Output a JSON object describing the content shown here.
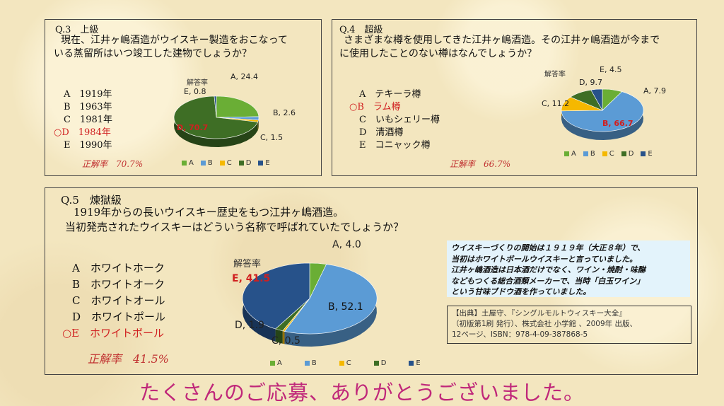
{
  "colors": {
    "A": "#6aae35",
    "B": "#5b9bd5",
    "C": "#f5b800",
    "D": "#3e6e25",
    "E": "#27528a",
    "red": "#d02020",
    "footer": "#c0287a"
  },
  "q3": {
    "title": "Q.3　上級",
    "text": [
      "現在、江井ヶ嶋酒造がウイスキー製造をおこなって",
      "いる蒸留所はいつ竣工した建物でしょうか？"
    ],
    "options": [
      "A　1919年",
      "B　1963年",
      "C　1981年",
      "○D　1984年",
      "E　1990年"
    ],
    "correct_rate": "正解率　70.7%",
    "chart_title": "解答率",
    "labels": {
      "A": "A, 24.4",
      "B": "B, 2.6",
      "C": "C, 1.5",
      "D": "D, 70.7",
      "E": "E, 0.8"
    }
  },
  "q4": {
    "title": "Q.4　超級",
    "text": [
      "さまざまな樽を使用してきた江井ヶ嶋酒造。その江井ヶ嶋酒造が今まで",
      "に使用したことのない樽はなんでしょうか？"
    ],
    "options": [
      "A　テキーラ樽",
      "○B　ラム樽",
      "C　いもシェリー樽",
      "D　清酒樽",
      "E　コニャック樽"
    ],
    "correct_rate": "正解率　66.7%",
    "chart_title": "解答率",
    "labels": {
      "A": "A, 7.9",
      "B": "B, 66.7",
      "C": "C, 11.2",
      "D": "D, 9.7",
      "E": "E, 4.5"
    }
  },
  "q5": {
    "title": "Q.5　煉獄級",
    "text": [
      "1919年からの長いウイスキー歴史をもつ江井ヶ嶋酒造。",
      "当初発売されたウイスキーはどういう名称で呼ばれていたでしょうか？"
    ],
    "options": [
      "A　ホワイトホーク",
      "B　ホワイトオーク",
      "C　ホワイトオール",
      "D　ホワイトポール",
      "○E　ホワイトボール"
    ],
    "correct_rate": "正解率　41.5%",
    "chart_title": "解答率",
    "labels": {
      "A": "A, 4.0",
      "B": "B, 52.1",
      "C": "C, 0.5",
      "D": "D, 1.9",
      "E": "E, 41.5"
    }
  },
  "legend": [
    "A",
    "B",
    "C",
    "D",
    "E"
  ],
  "chart_data": [
    {
      "type": "pie",
      "title": "解答率",
      "categories": [
        "A",
        "B",
        "C",
        "D",
        "E"
      ],
      "values": [
        24.4,
        2.6,
        1.5,
        70.7,
        0.8
      ]
    },
    {
      "type": "pie",
      "title": "解答率",
      "categories": [
        "A",
        "B",
        "C",
        "D",
        "E"
      ],
      "values": [
        7.9,
        66.7,
        11.2,
        9.7,
        4.5
      ]
    },
    {
      "type": "pie",
      "title": "解答率",
      "categories": [
        "A",
        "B",
        "C",
        "D",
        "E"
      ],
      "values": [
        4.0,
        52.1,
        0.5,
        1.9,
        41.5
      ]
    }
  ],
  "info": {
    "note": [
      "ウイスキーづくりの開始は１９１９年（大正８年）で、",
      "当初はホワイトボールウイスキーと言っていました。",
      "江井ヶ嶋酒造は日本酒だけでなく、ワイン・焼酎・味醂",
      "などもつくる総合酒類メーカーで、当時「白玉ワイン」",
      "という甘味ブドウ酒を作っていました。"
    ],
    "source": [
      "【出典】土屋守、『シングルモルトウィスキー大全』",
      "（初版第1刷 発行）、株式会社 小学館 、2009年 出版、",
      "12ページ、ISBN：978-4-09-387868-5"
    ]
  },
  "footer": "たくさんのご応募、ありがとうございました。"
}
